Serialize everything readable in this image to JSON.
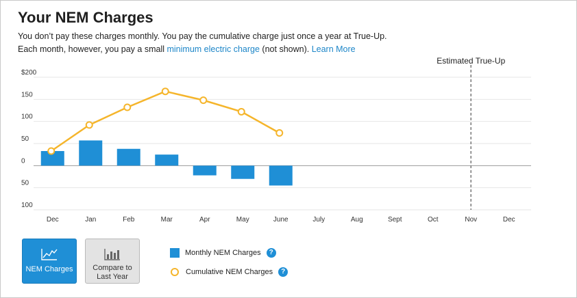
{
  "header": {
    "title": "Your NEM Charges",
    "line1": "You don’t pay these charges monthly. You pay the cumulative charge just once a year at True-Up.",
    "line2_prefix": "Each month, however, you pay a small ",
    "line2_link": "minimum electric charge",
    "line2_suffix": " (not shown). ",
    "learn_more": "Learn More"
  },
  "chart_data": {
    "type": "bar",
    "categories": [
      "Dec",
      "Jan",
      "Feb",
      "Mar",
      "Apr",
      "May",
      "June",
      "July",
      "Aug",
      "Sept",
      "Oct",
      "Nov",
      "Dec"
    ],
    "y_ticks": [
      200,
      150,
      100,
      50,
      0,
      -50,
      -100
    ],
    "y_tick_labels": [
      "$200",
      "150",
      "100",
      "50",
      "0",
      "50",
      "100"
    ],
    "ylim": [
      -100,
      200
    ],
    "grid": true,
    "series": [
      {
        "name": "Monthly NEM Charges",
        "type": "bar",
        "color": "#1f8fd6",
        "values": [
          33,
          57,
          38,
          25,
          -22,
          -30,
          -45,
          null,
          null,
          null,
          null,
          null,
          null
        ]
      },
      {
        "name": "Cumulative NEM Charges",
        "type": "line",
        "color": "#f5b52b",
        "values": [
          33,
          92,
          132,
          168,
          148,
          122,
          74,
          null,
          null,
          null,
          null,
          null,
          null
        ]
      }
    ],
    "annotation": {
      "label": "Estimated True-Up",
      "category_index": 11
    }
  },
  "controls": {
    "nem_charges_label": "NEM Charges",
    "compare_label_1": "Compare to",
    "compare_label_2": "Last Year",
    "help_glyph": "?"
  },
  "legend": {
    "monthly_label": "Monthly NEM Charges",
    "cumulative_label": "Cumulative NEM Charges"
  }
}
